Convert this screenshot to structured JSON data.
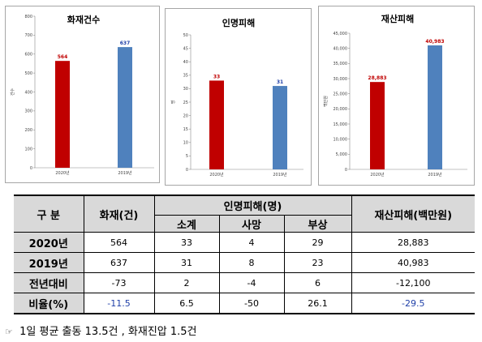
{
  "chart_data": [
    {
      "type": "bar",
      "title": "화재건수",
      "categories": [
        "2020년",
        "2019년"
      ],
      "values": [
        564,
        637
      ],
      "colors": [
        "#c00000",
        "#4f81bd"
      ],
      "label_colors": [
        "#c00000",
        "#1f3fa8"
      ],
      "ylabel": "건수",
      "ylim": [
        0,
        800
      ],
      "yticks": [
        0,
        100,
        200,
        300,
        400,
        500,
        600,
        700,
        800
      ],
      "grid": false
    },
    {
      "type": "bar",
      "title": "인명피해",
      "categories": [
        "2020년",
        "2019년"
      ],
      "values": [
        33,
        31
      ],
      "colors": [
        "#c00000",
        "#4f81bd"
      ],
      "label_colors": [
        "#c00000",
        "#1f3fa8"
      ],
      "ylabel": "명",
      "ylim": [
        0,
        50
      ],
      "yticks": [
        0,
        5,
        10,
        15,
        20,
        25,
        30,
        35,
        40,
        45,
        50
      ],
      "grid": false
    },
    {
      "type": "bar",
      "title": "재산피해",
      "categories": [
        "2020년",
        "2019년"
      ],
      "values": [
        28883,
        40983
      ],
      "value_labels": [
        "28,883",
        "40,983"
      ],
      "colors": [
        "#c00000",
        "#4f81bd"
      ],
      "label_colors": [
        "#c00000",
        "#c00000"
      ],
      "ylabel": "백만원",
      "ylim": [
        0,
        45000
      ],
      "yticks": [
        0,
        5000,
        10000,
        15000,
        20000,
        25000,
        30000,
        35000,
        40000,
        45000
      ],
      "ytick_labels": [
        "0",
        "5,000",
        "10,000",
        "15,000",
        "20,000",
        "25,000",
        "30,000",
        "35,000",
        "40,000",
        "45,000"
      ],
      "grid": false
    }
  ],
  "table": {
    "col_label": "구 분",
    "fires": "화재(건)",
    "casualties": "인명피해(명)",
    "subtotal": "소계",
    "deaths": "사망",
    "injuries": "부상",
    "property": "재산피해(백만원)",
    "rows": [
      {
        "label": "2020년",
        "fires": "564",
        "subtotal": "33",
        "deaths": "4",
        "injuries": "29",
        "property": "28,883"
      },
      {
        "label": "2019년",
        "fires": "637",
        "subtotal": "31",
        "deaths": "8",
        "injuries": "23",
        "property": "40,983"
      },
      {
        "label": "전년대비",
        "fires": "-73",
        "subtotal": "2",
        "deaths": "-4",
        "injuries": "6",
        "property": "-12,100"
      },
      {
        "label": "비율(%)",
        "fires": "-11.5",
        "subtotal": "6.5",
        "deaths": "-50",
        "injuries": "26.1",
        "property": "-29.5"
      }
    ]
  },
  "note": {
    "icon": "hand-pointer-icon",
    "text": "1일 평균 출동 13.5건 , 화재진압 1.5건"
  }
}
